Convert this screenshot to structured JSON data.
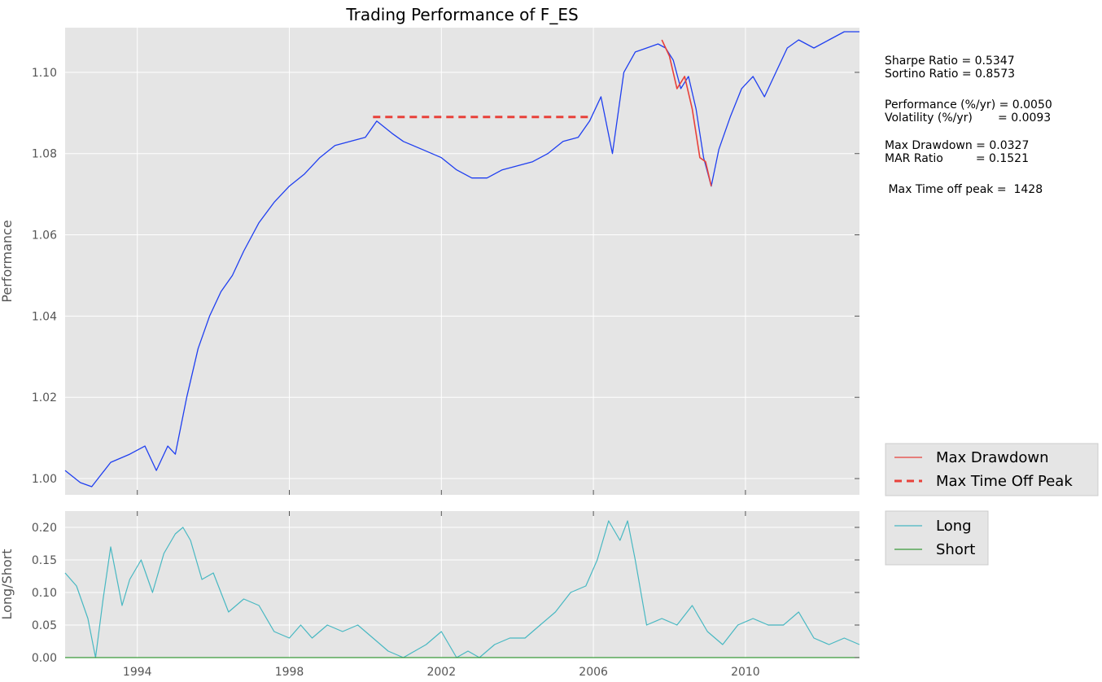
{
  "title": "Trading Performance of F_ES",
  "stats": {
    "sharpe": "Sharpe Ratio = 0.5347",
    "sortino": "Sortino Ratio = 0.8573",
    "performance": "Performance (%/yr) = 0.0050",
    "volatility": "Volatility (%/yr)       = 0.0093",
    "max_drawdown": "Max Drawdown = 0.0327",
    "mar": "MAR Ratio         = 0.1521",
    "time_off_peak": " Max Time off peak =  1428"
  },
  "colors": {
    "background": "#e5e5e5",
    "performance_line": "#1f3ff0",
    "drawdown_line": "#e8413a",
    "time_off_peak_line": "#e8413a",
    "long_line": "#48b8c2",
    "short_line": "#3a9a3a",
    "grid": "#ffffff"
  },
  "chart_data": [
    {
      "type": "line",
      "title": "Trading Performance of F_ES",
      "xlabel": "",
      "ylabel": "Performance",
      "xlim": [
        1992.1,
        2013.0
      ],
      "ylim": [
        0.996,
        1.111
      ],
      "yticks": [
        1.0,
        1.02,
        1.04,
        1.06,
        1.08,
        1.1
      ],
      "ytick_labels": [
        "1.00",
        "1.02",
        "1.04",
        "1.06",
        "1.08",
        "1.10"
      ],
      "grid": true,
      "series": [
        {
          "name": "Performance",
          "x": [
            1992.1,
            1992.5,
            1992.8,
            1993.3,
            1993.8,
            1994.2,
            1994.5,
            1994.8,
            1995.0,
            1995.3,
            1995.6,
            1995.9,
            1996.2,
            1996.5,
            1996.8,
            1997.2,
            1997.6,
            1998.0,
            1998.4,
            1998.8,
            1999.2,
            1999.6,
            2000.0,
            2000.3,
            2000.7,
            2001.0,
            2001.5,
            2002.0,
            2002.4,
            2002.8,
            2003.2,
            2003.6,
            2004.0,
            2004.4,
            2004.8,
            2005.2,
            2005.6,
            2005.9,
            2006.2,
            2006.5,
            2006.8,
            2007.1,
            2007.4,
            2007.7,
            2007.9,
            2008.1,
            2008.3,
            2008.5,
            2008.7,
            2008.9,
            2009.1,
            2009.3,
            2009.6,
            2009.9,
            2010.2,
            2010.5,
            2010.8,
            2011.1,
            2011.4,
            2011.8,
            2012.2,
            2012.6,
            2013.0
          ],
          "y": [
            1.002,
            0.999,
            0.998,
            1.004,
            1.006,
            1.008,
            1.002,
            1.008,
            1.006,
            1.02,
            1.032,
            1.04,
            1.046,
            1.05,
            1.056,
            1.063,
            1.068,
            1.072,
            1.075,
            1.079,
            1.082,
            1.083,
            1.084,
            1.088,
            1.085,
            1.083,
            1.081,
            1.079,
            1.076,
            1.074,
            1.074,
            1.076,
            1.077,
            1.078,
            1.08,
            1.083,
            1.084,
            1.088,
            1.094,
            1.08,
            1.1,
            1.105,
            1.106,
            1.107,
            1.106,
            1.103,
            1.096,
            1.099,
            1.091,
            1.079,
            1.072,
            1.081,
            1.089,
            1.096,
            1.099,
            1.094,
            1.1,
            1.106,
            1.108,
            1.106,
            1.108,
            1.11,
            1.11
          ]
        },
        {
          "name": "Max Drawdown",
          "x": [
            2007.8,
            2008.0,
            2008.2,
            2008.4,
            2008.6,
            2008.8,
            2008.95,
            2009.1
          ],
          "y": [
            1.108,
            1.104,
            1.096,
            1.099,
            1.091,
            1.079,
            1.078,
            1.072
          ]
        },
        {
          "name": "Max Time Off Peak",
          "x": [
            2000.2,
            2005.9
          ],
          "y": [
            1.089,
            1.089
          ]
        }
      ],
      "legend_placement": "outside-right"
    },
    {
      "type": "line",
      "xlabel": "",
      "ylabel": "Long/Short",
      "xlim": [
        1992.1,
        2013.0
      ],
      "ylim": [
        0.0,
        0.225
      ],
      "xticks": [
        1994,
        1998,
        2002,
        2006,
        2010
      ],
      "xtick_labels": [
        "1994",
        "1998",
        "2002",
        "2006",
        "2010"
      ],
      "yticks": [
        0.0,
        0.05,
        0.1,
        0.15,
        0.2
      ],
      "ytick_labels": [
        "0.00",
        "0.05",
        "0.10",
        "0.15",
        "0.20"
      ],
      "grid": true,
      "series": [
        {
          "name": "Long",
          "x": [
            1992.1,
            1992.4,
            1992.7,
            1992.9,
            1993.1,
            1993.3,
            1993.6,
            1993.8,
            1994.1,
            1994.4,
            1994.7,
            1995.0,
            1995.2,
            1995.4,
            1995.7,
            1996.0,
            1996.4,
            1996.8,
            1997.2,
            1997.6,
            1998.0,
            1998.3,
            1998.6,
            1999.0,
            1999.4,
            1999.8,
            2000.2,
            2000.6,
            2001.0,
            2001.3,
            2001.6,
            2002.0,
            2002.4,
            2002.7,
            2003.0,
            2003.4,
            2003.8,
            2004.2,
            2004.6,
            2005.0,
            2005.4,
            2005.8,
            2006.1,
            2006.4,
            2006.7,
            2006.9,
            2007.1,
            2007.4,
            2007.8,
            2008.2,
            2008.6,
            2009.0,
            2009.4,
            2009.8,
            2010.2,
            2010.6,
            2011.0,
            2011.4,
            2011.8,
            2012.2,
            2012.6,
            2013.0
          ],
          "y": [
            0.13,
            0.11,
            0.06,
            0.0,
            0.09,
            0.17,
            0.08,
            0.12,
            0.15,
            0.1,
            0.16,
            0.19,
            0.2,
            0.18,
            0.12,
            0.13,
            0.07,
            0.09,
            0.08,
            0.04,
            0.03,
            0.05,
            0.03,
            0.05,
            0.04,
            0.05,
            0.03,
            0.01,
            0.0,
            0.01,
            0.02,
            0.04,
            0.0,
            0.01,
            0.0,
            0.02,
            0.03,
            0.03,
            0.05,
            0.07,
            0.1,
            0.11,
            0.15,
            0.21,
            0.18,
            0.21,
            0.15,
            0.05,
            0.06,
            0.05,
            0.08,
            0.04,
            0.02,
            0.05,
            0.06,
            0.05,
            0.05,
            0.07,
            0.03,
            0.02,
            0.03,
            0.02
          ]
        },
        {
          "name": "Short",
          "x": [
            1992.1,
            2013.0
          ],
          "y": [
            0.0,
            0.0
          ]
        }
      ],
      "legend_placement": "outside-right"
    }
  ]
}
